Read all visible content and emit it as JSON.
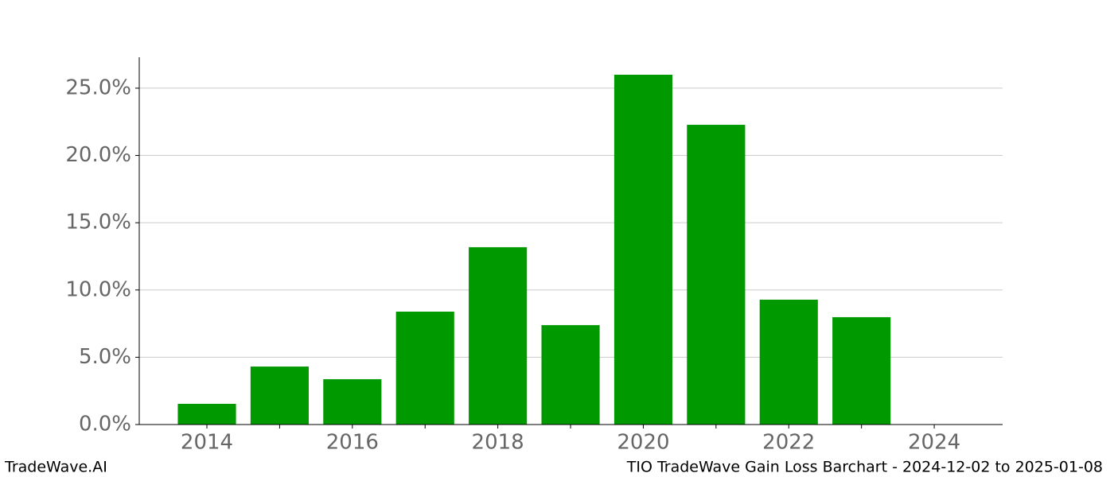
{
  "chart_data": {
    "type": "bar",
    "title": "TIO TradeWave Gain Loss Barchart - 2024-12-02 to 2025-01-08",
    "watermark": "TradeWave.AI",
    "x": [
      2014,
      2015,
      2016,
      2017,
      2018,
      2019,
      2020,
      2021,
      2022,
      2023
    ],
    "values": [
      1.54,
      4.31,
      3.37,
      8.39,
      13.18,
      7.39,
      26.0,
      22.28,
      9.28,
      7.98
    ],
    "color": "#009900",
    "xlim": [
      2013.07,
      2024.94
    ],
    "xticks": [
      2014,
      2016,
      2018,
      2020,
      2022,
      2024
    ],
    "xminorticks": [
      2015,
      2017,
      2019,
      2021,
      2023
    ],
    "ylim": [
      0,
      27.3
    ],
    "yticks": [
      {
        "value": 0,
        "label": "0.0%"
      },
      {
        "value": 5,
        "label": "5.0%"
      },
      {
        "value": 10,
        "label": "10.0%"
      },
      {
        "value": 15,
        "label": "15.0%"
      },
      {
        "value": 20,
        "label": "20.0%"
      },
      {
        "value": 25,
        "label": "25.0%"
      }
    ],
    "grid": true
  }
}
